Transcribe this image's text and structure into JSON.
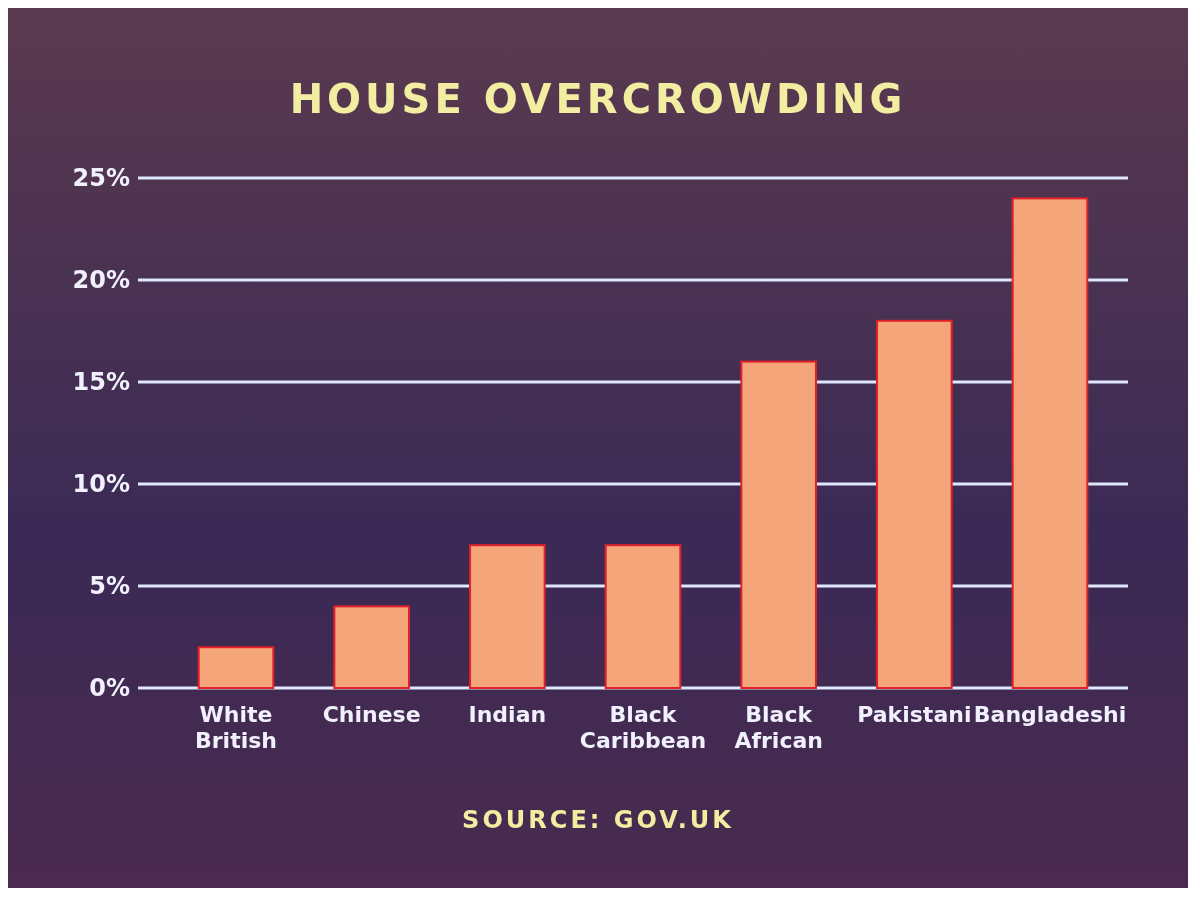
{
  "chart_data": {
    "type": "bar",
    "title": "HOUSE OVERCROWDING",
    "categories": [
      "White British",
      "Chinese",
      "Indian",
      "Black Caribbean",
      "Black African",
      "Pakistani",
      "Bangladeshi"
    ],
    "values": [
      2,
      4,
      7,
      7,
      16,
      18,
      24
    ],
    "color": "#f4a57a",
    "ylim": [
      0,
      25
    ],
    "yticks": [
      {
        "value": 0,
        "label": "0%"
      },
      {
        "value": 5,
        "label": "5%"
      },
      {
        "value": 10,
        "label": "10%"
      },
      {
        "value": 15,
        "label": "15%"
      },
      {
        "value": 20,
        "label": "20%"
      },
      {
        "value": 25,
        "label": "25%"
      }
    ],
    "grid": "y",
    "annotations": [
      "SOURCE: GOV.UK"
    ]
  }
}
